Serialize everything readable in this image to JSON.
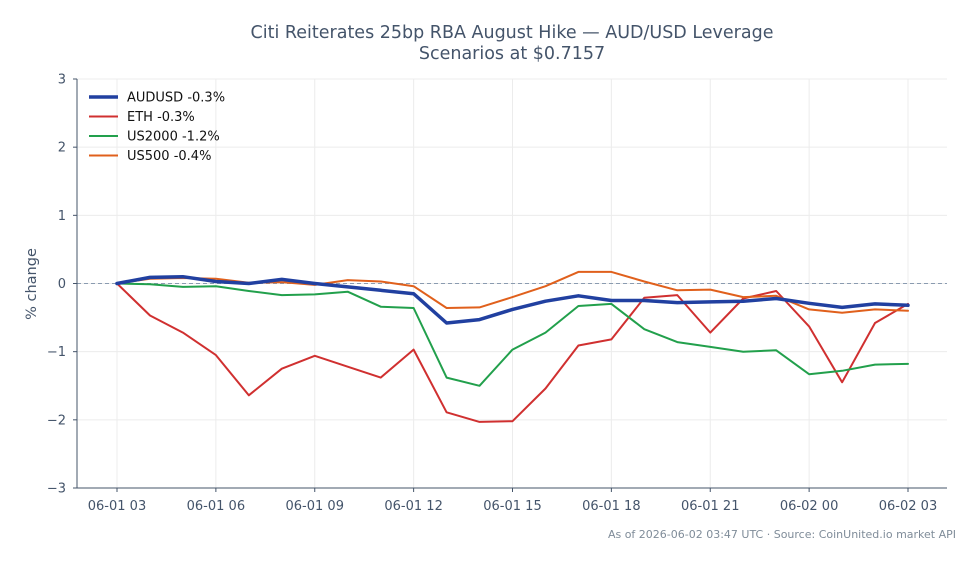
{
  "chart_data": {
    "type": "line",
    "title": "Citi Reiterates 25bp RBA August Hike — AUD/USD Leverage",
    "subtitle": "Scenarios at $0.7157",
    "xlabel": "",
    "ylabel": "% change",
    "ylim": [
      -3,
      3
    ],
    "yticks": [
      3,
      2,
      1,
      0,
      -1,
      -2,
      -3
    ],
    "ytick_labels": [
      "3",
      "2",
      "1",
      "0",
      "−1",
      "−2",
      "−3"
    ],
    "x": [
      "06-01 03:00",
      "06-01 04:00",
      "06-01 05:00",
      "06-01 06:00",
      "06-01 07:00",
      "06-01 08:00",
      "06-01 09:00",
      "06-01 10:00",
      "06-01 11:00",
      "06-01 12:00",
      "06-01 13:00",
      "06-01 14:00",
      "06-01 15:00",
      "06-01 16:00",
      "06-01 17:00",
      "06-01 18:00",
      "06-01 19:00",
      "06-01 20:00",
      "06-01 21:00",
      "06-01 22:00",
      "06-01 23:00",
      "06-02 00:00",
      "06-02 01:00",
      "06-02 02:00",
      "06-02 03:00"
    ],
    "xticks": [
      "06-01 03",
      "06-01 06",
      "06-01 09",
      "06-01 12",
      "06-01 15",
      "06-01 18",
      "06-01 21",
      "06-02 00",
      "06-02 03"
    ],
    "grid": true,
    "legend_position": "top-left",
    "reference_line": {
      "y": 0,
      "style": "dashed",
      "color": "#8a9bb0"
    },
    "series": [
      {
        "name": "AUDUSD -0.3%",
        "color": "#2140a0",
        "width": 3.5,
        "values": [
          0.0,
          0.09,
          0.1,
          0.03,
          0.0,
          0.06,
          0.0,
          -0.05,
          -0.1,
          -0.15,
          -0.58,
          -0.53,
          -0.38,
          -0.26,
          -0.18,
          -0.25,
          -0.25,
          -0.28,
          -0.27,
          -0.26,
          -0.22,
          -0.29,
          -0.35,
          -0.3,
          -0.32
        ]
      },
      {
        "name": "ETH -0.3%",
        "color": "#d03030",
        "width": 2,
        "values": [
          0.0,
          -0.47,
          -0.72,
          -1.05,
          -1.64,
          -1.25,
          -1.06,
          -1.22,
          -1.38,
          -0.97,
          -1.89,
          -2.03,
          -2.02,
          -1.54,
          -0.91,
          -0.82,
          -0.21,
          -0.17,
          -0.72,
          -0.22,
          -0.11,
          -0.63,
          -1.45,
          -0.58,
          -0.3
        ]
      },
      {
        "name": "US2000 -1.2%",
        "color": "#22a04c",
        "width": 2,
        "values": [
          0.0,
          -0.01,
          -0.05,
          -0.04,
          -0.11,
          -0.17,
          -0.16,
          -0.12,
          -0.34,
          -0.36,
          -1.38,
          -1.5,
          -0.97,
          -0.72,
          -0.33,
          -0.3,
          -0.67,
          -0.86,
          -0.93,
          -1.0,
          -0.98,
          -1.33,
          -1.28,
          -1.19,
          -1.18
        ]
      },
      {
        "name": "US500 -0.4%",
        "color": "#e0601c",
        "width": 2,
        "values": [
          0.0,
          0.07,
          0.08,
          0.07,
          0.01,
          0.02,
          -0.02,
          0.05,
          0.03,
          -0.04,
          -0.36,
          -0.35,
          -0.2,
          -0.04,
          0.17,
          0.17,
          0.03,
          -0.1,
          -0.09,
          -0.2,
          -0.18,
          -0.38,
          -0.43,
          -0.38,
          -0.4
        ]
      }
    ],
    "footer": "As of 2026-06-02 03:47 UTC · Source: CoinUnited.io market API"
  }
}
